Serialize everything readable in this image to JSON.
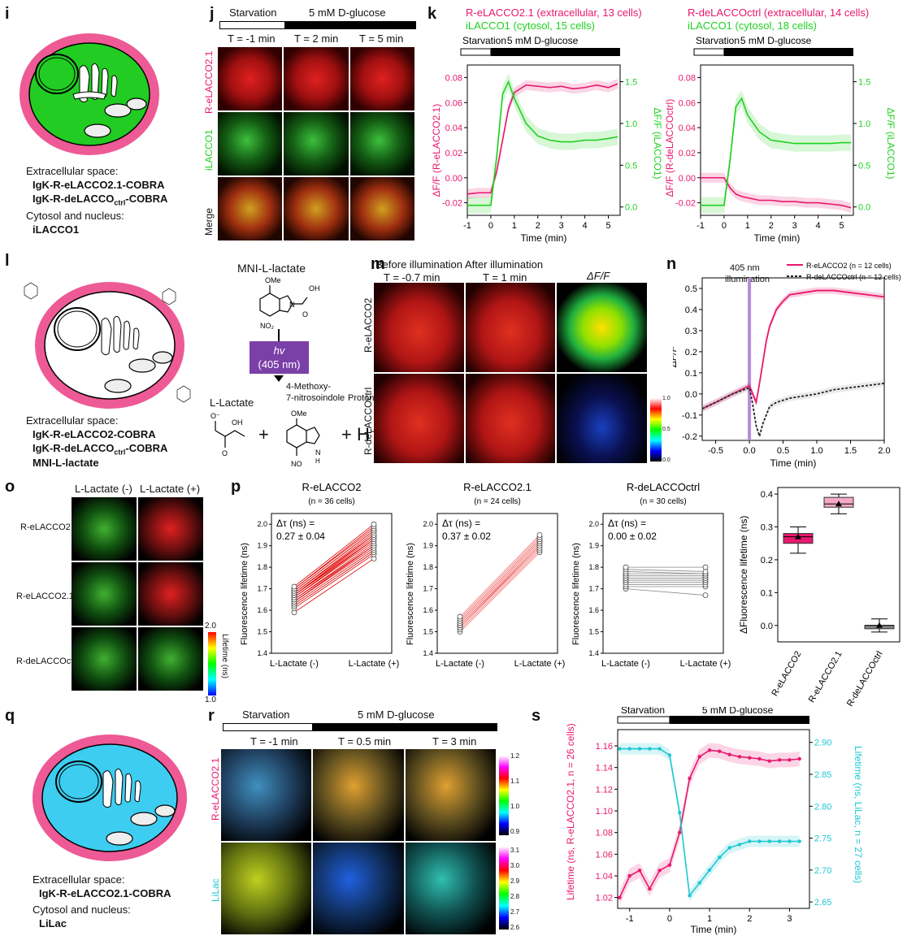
{
  "panels": {
    "i": {
      "label": "i",
      "line1": "Extracellular space:",
      "line2": "IgK-R-eLACCO2.1-COBRA",
      "line3": "IgK-R-deLACCO",
      "line3_sub": "ctrl",
      "line3_end": "-COBRA",
      "line4": "Cytosol and nucleus:",
      "line5": "iLACCO1"
    },
    "j": {
      "label": "j",
      "bar_left": "Starvation",
      "bar_right": "5 mM D-glucose",
      "times": [
        "T = -1 min",
        "T = 2 min",
        "T = 5 min"
      ],
      "rows": [
        "R-eLACCO2.1",
        "iLACCO1",
        "Merge"
      ]
    },
    "k": {
      "label": "k",
      "left": {
        "title1": "R-eLACCO2.1 (extracellular, 13 cells)",
        "title2": "iLACCO1 (cytosol, 15 cells)",
        "bar_left": "Starvation",
        "bar_right": "5 mM D-glucose",
        "yl": "ΔF/F (R-eLACCO2.1)",
        "yr": "ΔF/F (iLACCO1)",
        "xlabel": "Time (min)"
      },
      "right": {
        "title1": "R-deLACCOctrl (extracellular, 14 cells)",
        "title2": "iLACCO1 (cytosol, 18 cells)",
        "bar_left": "Starvation",
        "bar_right": "5 mM D-glucose",
        "yl": "ΔF/F (R-deLACCOctrl)",
        "yr": "ΔF/F (iLACCO1)",
        "xlabel": "Time (min)"
      }
    },
    "l": {
      "label": "l",
      "line1": "Extracellular space:",
      "line2": "IgK-R-eLACCO2-COBRA",
      "line3": "IgK-R-deLACCO",
      "line3_sub": "ctrl",
      "line3_end": "-COBRA",
      "line4": "MNI-L-lactate",
      "mni": "MNI-L-lactate",
      "hv": "hv",
      "nm": "(405 nm)",
      "product1": "4-Methoxy-",
      "product2": "7-nitrosoindole",
      "proton": "Proton",
      "llactate": "L-Lactate",
      "plus1": "+",
      "plus2": "+ H⁺"
    },
    "m": {
      "label": "m",
      "col1a": "Before illumination",
      "col1b": "T = -0.7 min",
      "col2a": "After illumination",
      "col2b": "T = 1 min",
      "col3": "ΔF/F",
      "row1": "R-eLACCO2",
      "row2": "R-deLACCOctrl",
      "scale_top": "1.0",
      "scale_mid": "0.5",
      "scale_bot": "0.0"
    },
    "n": {
      "label": "n",
      "annot1": "405 nm",
      "annot2": "illumination",
      "legend1": "R-eLACCO2 (n = 12 cells)",
      "legend2": "R-deLACCOctrl (n = 12 cells)",
      "ylabel": "ΔF/F",
      "xlabel": "Time (min)"
    },
    "o": {
      "label": "o",
      "col1": "L-Lactate (-)",
      "col2": "L-Lactate (+)",
      "rows": [
        "R-eLACCO2",
        "R-eLACCO2.1",
        "R-deLACCOctrl"
      ],
      "cb_top": "2.0",
      "cb_bot": "1.0",
      "cb_label": "Lifetime (ns)"
    },
    "p": {
      "label": "p",
      "sub": [
        {
          "title": "R-eLACCO2",
          "n": "(n = 36 cells)",
          "d1": "Δτ (ns) =",
          "d2": "0.27 ± 0.04"
        },
        {
          "title": "R-eLACCO2.1",
          "n": "(n = 24 cells)",
          "d1": "Δτ (ns) =",
          "d2": "0.37 ± 0.02"
        },
        {
          "title": "R-deLACCOctrl",
          "n": "(n = 30 cells)",
          "d1": "Δτ (ns) =",
          "d2": "0.00 ± 0.02"
        }
      ],
      "ylabel": "Fluorescence lifetime (ns)",
      "xcat1": "L-Lactate (-)",
      "xcat2": "L-Lactate (+)",
      "box_ylabel": "ΔFluorescence lifetime (ns)",
      "box_cats": [
        "R-eLACCO2",
        "R-eLACCO2.1",
        "R-deLACCOctrl"
      ]
    },
    "q": {
      "label": "q",
      "line1": "Extracellular space:",
      "line2": "IgK-R-eLACCO2.1-COBRA",
      "line3": "Cytosol and nucleus:",
      "line4": "LiLac"
    },
    "r": {
      "label": "r",
      "bar_left": "Starvation",
      "bar_right": "5 mM D-glucose",
      "times": [
        "T = -1 min",
        "T = 0.5 min",
        "T = 3 min"
      ],
      "rows": [
        "R-eLACCO2.1",
        "LiLac"
      ],
      "cb1": [
        "1.2",
        "1.1",
        "1.0",
        "0.9"
      ],
      "cb2": [
        "3.1",
        "3.0",
        "2.9",
        "2.8",
        "2.7",
        "2.6"
      ]
    },
    "s": {
      "label": "s",
      "bar_left": "Starvation",
      "bar_right": "5 mM D-glucose",
      "yl": "Lifetime (ns, R-eLACCO2.1, n = 26 cells)",
      "yr": "Lifetime (ns, LiLac, n = 27 cells)",
      "xlabel": "Time (min)"
    }
  },
  "colors": {
    "magenta": "#e8186d",
    "green": "#1fd11f",
    "cyan": "#1ec8d2",
    "purple": "#7b3fa8",
    "pink_membrane": "#ee5a95"
  },
  "chart_data": [
    {
      "type": "line",
      "panel": "k-left",
      "xlabel": "Time (min)",
      "ylabel": "ΔF/F (R-eLACCO2.1)",
      "ylabel_right": "ΔF/F (iLACCO1)",
      "xlim": [
        -1,
        5.5
      ],
      "ylim": [
        -0.03,
        0.09
      ],
      "ylim_right": [
        -0.1,
        1.7
      ],
      "x": [
        -1,
        -0.5,
        0,
        0.25,
        0.5,
        0.75,
        1,
        1.5,
        2,
        2.5,
        3,
        3.5,
        4,
        4.5,
        5,
        5.4
      ],
      "series": [
        {
          "name": "R-eLACCO2.1",
          "axis": "left",
          "values": [
            -0.013,
            -0.012,
            -0.012,
            0.005,
            0.03,
            0.055,
            0.068,
            0.074,
            0.073,
            0.072,
            0.073,
            0.071,
            0.072,
            0.074,
            0.072,
            0.075
          ]
        },
        {
          "name": "iLACCO1",
          "axis": "right",
          "values": [
            0.02,
            0.02,
            0.02,
            0.6,
            1.35,
            1.5,
            1.3,
            1.0,
            0.85,
            0.8,
            0.78,
            0.78,
            0.8,
            0.8,
            0.82,
            0.84
          ]
        }
      ]
    },
    {
      "type": "line",
      "panel": "k-right",
      "xlabel": "Time (min)",
      "ylabel": "ΔF/F (R-deLACCOctrl)",
      "ylabel_right": "ΔF/F (iLACCO1)",
      "xlim": [
        -1,
        5.5
      ],
      "ylim": [
        -0.03,
        0.09
      ],
      "ylim_right": [
        -0.1,
        1.7
      ],
      "x": [
        -1,
        -0.5,
        0,
        0.25,
        0.5,
        0.75,
        1,
        1.5,
        2,
        2.5,
        3,
        3.5,
        4,
        4.5,
        5,
        5.4
      ],
      "series": [
        {
          "name": "R-deLACCOctrl",
          "axis": "left",
          "values": [
            0.0,
            0.0,
            0.0,
            -0.008,
            -0.013,
            -0.015,
            -0.016,
            -0.018,
            -0.018,
            -0.019,
            -0.019,
            -0.02,
            -0.02,
            -0.021,
            -0.022,
            -0.024
          ]
        },
        {
          "name": "iLACCO1",
          "axis": "right",
          "values": [
            0.02,
            0.02,
            0.02,
            0.55,
            1.2,
            1.3,
            1.1,
            0.9,
            0.8,
            0.78,
            0.76,
            0.76,
            0.76,
            0.76,
            0.77,
            0.77
          ]
        }
      ]
    },
    {
      "type": "line",
      "panel": "n",
      "xlabel": "Time (min)",
      "ylabel": "ΔF/F",
      "xlim": [
        -0.7,
        2.0
      ],
      "ylim": [
        -0.22,
        0.55
      ],
      "x": [
        -0.7,
        -0.5,
        -0.25,
        0,
        0.05,
        0.1,
        0.15,
        0.2,
        0.25,
        0.3,
        0.4,
        0.5,
        0.6,
        0.8,
        1.0,
        1.25,
        1.5,
        1.75,
        2.0
      ],
      "series": [
        {
          "name": "R-eLACCO2 (n = 12 cells)",
          "values": [
            -0.07,
            -0.04,
            0.0,
            0.04,
            0.0,
            -0.04,
            0.05,
            0.15,
            0.25,
            0.32,
            0.4,
            0.44,
            0.47,
            0.48,
            0.49,
            0.49,
            0.48,
            0.47,
            0.46
          ]
        },
        {
          "name": "R-deLACCOctrl (n = 12 cells)",
          "values": [
            -0.07,
            -0.04,
            0.0,
            0.03,
            -0.05,
            -0.15,
            -0.2,
            -0.14,
            -0.1,
            -0.06,
            -0.04,
            -0.03,
            -0.02,
            -0.01,
            0.0,
            0.02,
            0.03,
            0.04,
            0.05
          ]
        }
      ]
    },
    {
      "type": "paired",
      "panel": "p",
      "ylabel": "Fluorescence lifetime (ns)",
      "ylim": [
        1.4,
        2.05
      ],
      "categories": [
        "L-Lactate (-)",
        "L-Lactate (+)"
      ],
      "series": [
        {
          "name": "R-eLACCO2",
          "before": [
            1.59,
            1.61,
            1.62,
            1.63,
            1.64,
            1.64,
            1.65,
            1.65,
            1.66,
            1.66,
            1.67,
            1.67,
            1.67,
            1.68,
            1.68,
            1.69,
            1.69,
            1.7,
            1.7,
            1.71
          ],
          "after": [
            1.84,
            1.86,
            1.87,
            1.88,
            1.89,
            1.9,
            1.9,
            1.91,
            1.92,
            1.93,
            1.93,
            1.94,
            1.95,
            1.95,
            1.96,
            1.97,
            1.97,
            1.98,
            1.99,
            2.0
          ]
        },
        {
          "name": "R-eLACCO2.1",
          "before": [
            1.5,
            1.51,
            1.52,
            1.52,
            1.53,
            1.53,
            1.54,
            1.54,
            1.55,
            1.55,
            1.56,
            1.57
          ],
          "after": [
            1.87,
            1.88,
            1.89,
            1.9,
            1.9,
            1.91,
            1.92,
            1.92,
            1.93,
            1.93,
            1.94,
            1.95
          ]
        },
        {
          "name": "R-deLACCOctrl",
          "before": [
            1.7,
            1.71,
            1.72,
            1.73,
            1.74,
            1.74,
            1.75,
            1.75,
            1.76,
            1.76,
            1.77,
            1.78,
            1.79,
            1.8
          ],
          "after": [
            1.67,
            1.71,
            1.72,
            1.73,
            1.74,
            1.74,
            1.75,
            1.75,
            1.76,
            1.76,
            1.77,
            1.77,
            1.78,
            1.8
          ]
        }
      ]
    },
    {
      "type": "box",
      "panel": "p-summary",
      "ylabel": "ΔFluorescence lifetime (ns)",
      "ylim": [
        -0.05,
        0.42
      ],
      "categories": [
        "R-eLACCO2",
        "R-eLACCO2.1",
        "R-deLACCOctrl"
      ],
      "boxes": [
        {
          "q1": 0.25,
          "median": 0.27,
          "q3": 0.28,
          "min": 0.22,
          "max": 0.3,
          "mean": 0.27
        },
        {
          "q1": 0.36,
          "median": 0.37,
          "q3": 0.39,
          "min": 0.34,
          "max": 0.4,
          "mean": 0.37
        },
        {
          "q1": -0.01,
          "median": 0.0,
          "q3": 0.0,
          "min": -0.02,
          "max": 0.02,
          "mean": 0.0
        }
      ]
    },
    {
      "type": "line",
      "panel": "s",
      "xlabel": "Time (min)",
      "ylabel": "Lifetime (ns, R-eLACCO2.1, n = 26 cells)",
      "ylabel_right": "Lifetime (ns, LiLac, n = 27 cells)",
      "xlim": [
        -1.3,
        3.5
      ],
      "ylim": [
        1.01,
        1.175
      ],
      "ylim_right": [
        2.64,
        2.92
      ],
      "x": [
        -1.25,
        -1.0,
        -0.75,
        -0.5,
        -0.25,
        0,
        0.25,
        0.5,
        0.75,
        1.0,
        1.25,
        1.5,
        1.75,
        2.0,
        2.25,
        2.5,
        2.75,
        3.0,
        3.25
      ],
      "series": [
        {
          "name": "R-eLACCO2.1",
          "axis": "left",
          "values": [
            1.02,
            1.04,
            1.045,
            1.028,
            1.045,
            1.05,
            1.08,
            1.13,
            1.15,
            1.156,
            1.155,
            1.152,
            1.15,
            1.149,
            1.148,
            1.146,
            1.147,
            1.147,
            1.148
          ]
        },
        {
          "name": "LiLac",
          "axis": "right",
          "values": [
            2.89,
            2.89,
            2.89,
            2.89,
            2.89,
            2.88,
            2.79,
            2.66,
            2.68,
            2.7,
            2.72,
            2.735,
            2.74,
            2.745,
            2.745,
            2.745,
            2.745,
            2.745,
            2.745
          ]
        }
      ]
    }
  ]
}
